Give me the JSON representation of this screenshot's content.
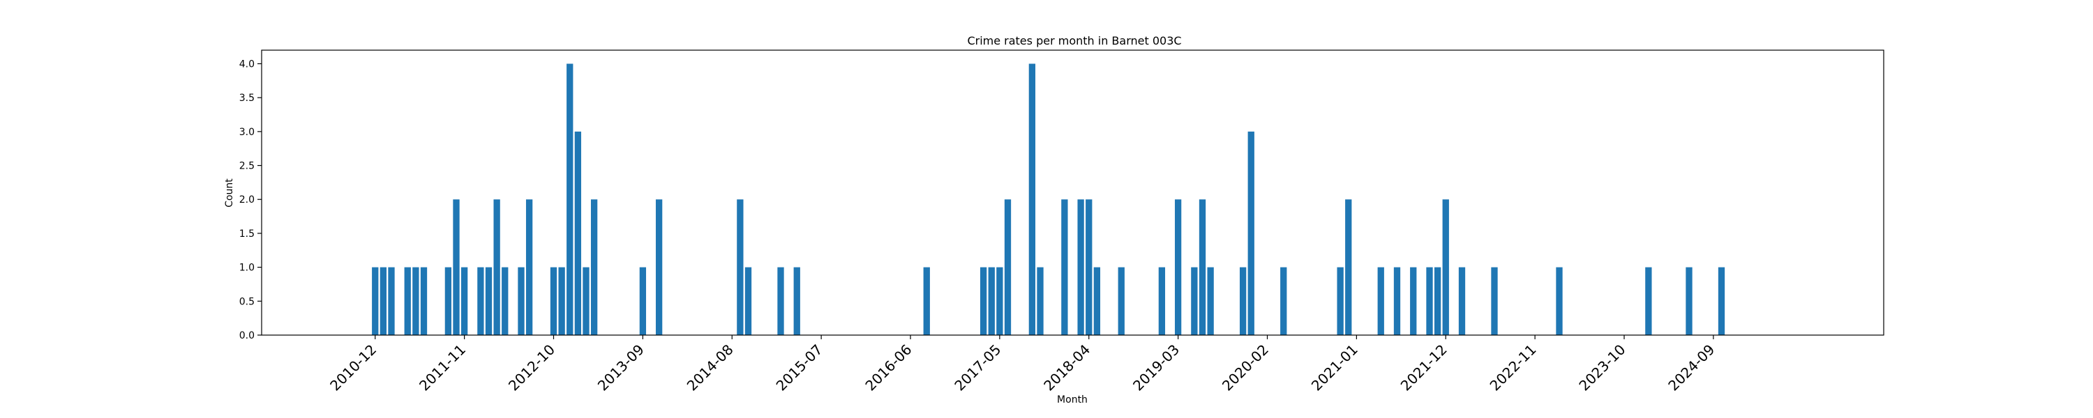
{
  "chart_data": {
    "type": "bar",
    "title": "Crime rates per month in Barnet 003C",
    "xlabel": "Month",
    "ylabel": "Count",
    "ylim": [
      0,
      4.2
    ],
    "xlim": [
      "2009-10",
      "2026-06"
    ],
    "yticks": [
      0.0,
      0.5,
      1.0,
      1.5,
      2.0,
      2.5,
      3.0,
      3.5,
      4.0
    ],
    "ytick_labels": [
      "0.0",
      "0.5",
      "1.0",
      "1.5",
      "2.0",
      "2.5",
      "3.0",
      "3.5",
      "4.0"
    ],
    "xticks": [
      "2010-12",
      "2011-11",
      "2012-10",
      "2013-09",
      "2014-08",
      "2015-07",
      "2016-06",
      "2017-05",
      "2018-04",
      "2019-03",
      "2020-02",
      "2021-01",
      "2021-12",
      "2022-11",
      "2023-10",
      "2024-09"
    ],
    "grid": false,
    "bar_color": "#1f77b4",
    "categories": [
      "2010-12",
      "2011-01",
      "2011-02",
      "2011-04",
      "2011-05",
      "2011-06",
      "2011-09",
      "2011-10",
      "2011-11",
      "2012-01",
      "2012-02",
      "2012-03",
      "2012-04",
      "2012-06",
      "2012-07",
      "2012-10",
      "2012-11",
      "2012-12",
      "2013-01",
      "2013-02",
      "2013-03",
      "2013-09",
      "2013-11",
      "2014-09",
      "2014-10",
      "2015-02",
      "2015-04",
      "2016-08",
      "2017-03",
      "2017-04",
      "2017-05",
      "2017-06",
      "2017-09",
      "2017-10",
      "2018-01",
      "2018-03",
      "2018-04",
      "2018-05",
      "2018-08",
      "2019-01",
      "2019-03",
      "2019-05",
      "2019-06",
      "2019-07",
      "2019-11",
      "2019-12",
      "2020-04",
      "2020-11",
      "2020-12",
      "2021-04",
      "2021-06",
      "2021-08",
      "2021-10",
      "2021-11",
      "2021-12",
      "2022-02",
      "2022-06",
      "2023-02",
      "2024-01",
      "2024-06",
      "2024-10"
    ],
    "values": [
      1,
      1,
      1,
      1,
      1,
      1,
      1,
      2,
      1,
      1,
      1,
      2,
      1,
      1,
      2,
      1,
      1,
      4,
      3,
      1,
      2,
      1,
      2,
      2,
      1,
      1,
      1,
      1,
      1,
      1,
      1,
      2,
      4,
      1,
      2,
      2,
      2,
      1,
      1,
      1,
      2,
      1,
      2,
      1,
      1,
      3,
      1,
      1,
      2,
      1,
      1,
      1,
      1,
      1,
      2,
      1,
      1,
      1,
      1,
      1,
      1
    ]
  }
}
